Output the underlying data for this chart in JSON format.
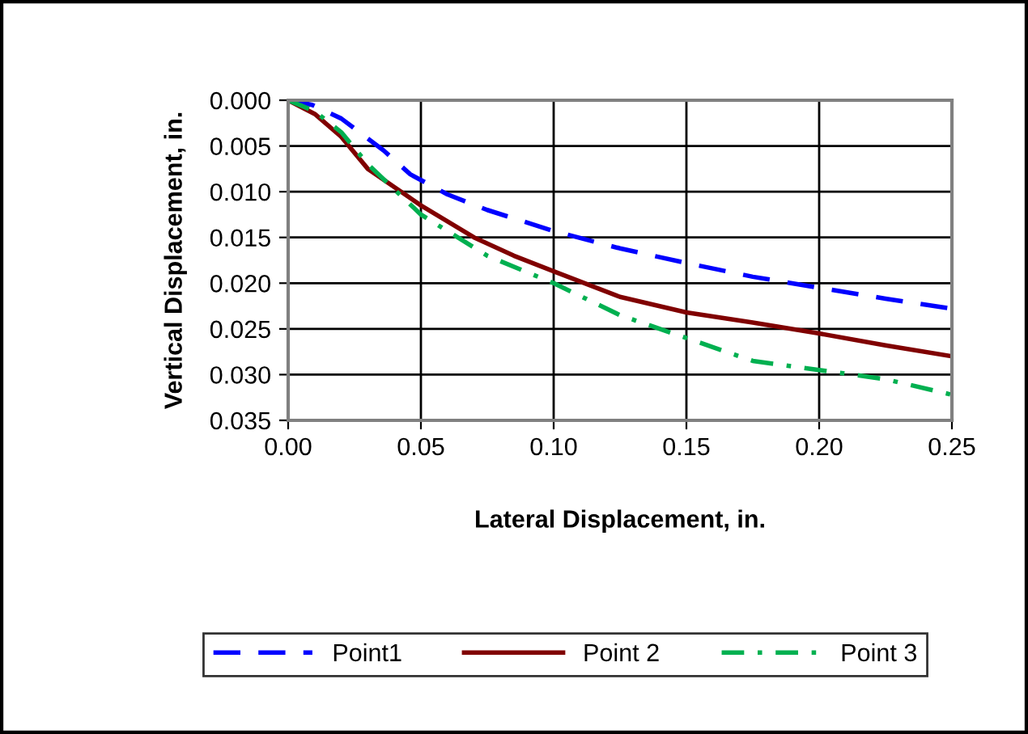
{
  "chart_data": {
    "type": "line",
    "xlabel": "Lateral Displacement, in.",
    "ylabel": "Vertical Displacement, in.",
    "xlim": [
      0,
      0.25
    ],
    "xticks": [
      {
        "value": 0,
        "label": "0.00"
      },
      {
        "value": 0.05,
        "label": "0.05"
      },
      {
        "value": 0.1,
        "label": "0.10"
      },
      {
        "value": 0.15,
        "label": "0.15"
      },
      {
        "value": 0.2,
        "label": "0.20"
      },
      {
        "value": 0.25,
        "label": "0.25"
      }
    ],
    "ylim": [
      0.035,
      0
    ],
    "yticks": [
      {
        "value": 0,
        "label": "0.000"
      },
      {
        "value": 0.005,
        "label": "0.005"
      },
      {
        "value": 0.01,
        "label": "0.010"
      },
      {
        "value": 0.015,
        "label": "0.015"
      },
      {
        "value": 0.02,
        "label": "0.020"
      },
      {
        "value": 0.025,
        "label": "0.025"
      },
      {
        "value": 0.03,
        "label": "0.030"
      },
      {
        "value": 0.035,
        "label": "0.035"
      }
    ],
    "grid": true,
    "legend": "bottom",
    "marker": "none",
    "series": [
      {
        "name": "Point1",
        "color": "#0000ff",
        "line_style": "dashed",
        "x": [
          0,
          0.009,
          0.02,
          0.036,
          0.046,
          0.06,
          0.075,
          0.1,
          0.125,
          0.15,
          0.175,
          0.2,
          0.225,
          0.25
        ],
        "values": [
          0,
          0.0005,
          0.002,
          0.0055,
          0.0081,
          0.0103,
          0.012,
          0.0143,
          0.0162,
          0.0178,
          0.0193,
          0.0205,
          0.0217,
          0.0228
        ]
      },
      {
        "name": "Point 2",
        "color": "#800000",
        "line_style": "solid",
        "x": [
          0,
          0.01,
          0.02,
          0.03,
          0.04,
          0.05,
          0.07,
          0.085,
          0.1,
          0.125,
          0.15,
          0.175,
          0.2,
          0.225,
          0.25
        ],
        "values": [
          0,
          0.0015,
          0.004,
          0.0075,
          0.0095,
          0.0115,
          0.015,
          0.017,
          0.0187,
          0.0215,
          0.0232,
          0.0243,
          0.0255,
          0.0268,
          0.028
        ]
      },
      {
        "name": "Point 3",
        "color": "#00b050",
        "line_style": "dashdot",
        "x": [
          0,
          0.01,
          0.02,
          0.03,
          0.05,
          0.075,
          0.1,
          0.125,
          0.15,
          0.175,
          0.2,
          0.225,
          0.25
        ],
        "values": [
          0,
          0.0012,
          0.0035,
          0.007,
          0.0125,
          0.017,
          0.02,
          0.0235,
          0.026,
          0.0285,
          0.0295,
          0.0305,
          0.0322
        ]
      }
    ]
  }
}
